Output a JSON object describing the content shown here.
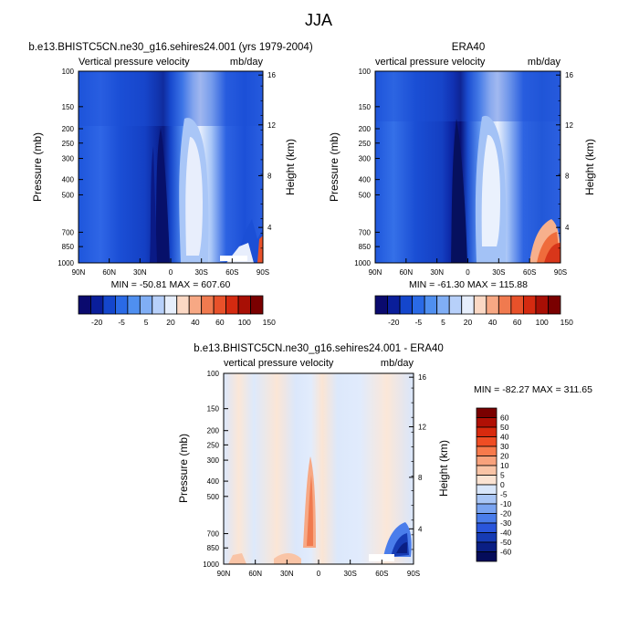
{
  "page": {
    "title": "JJA"
  },
  "chart_data": [
    {
      "type": "heatmap",
      "title": "b.e13.BHISTC5CN.ne30_g16.sehires24.001 (yrs 1979-2004)",
      "left_string": "Vertical pressure velocity",
      "right_string": "mb/day",
      "xlabel": "",
      "ylabel": "Pressure (mb)",
      "y2label": "Height (km)",
      "x_ticks": [
        "90N",
        "60N",
        "30N",
        "0",
        "30S",
        "60S",
        "90S"
      ],
      "y_ticks": [
        "100",
        "150",
        "200",
        "250",
        "300",
        "400",
        "500",
        "700",
        "850",
        "1000"
      ],
      "y2_ticks": [
        "4",
        "8",
        "12",
        "16"
      ],
      "stats": "MIN = -50.81  MAX = 607.60",
      "colorbar_labels": [
        "-20",
        "-5",
        "5",
        "20",
        "40",
        "60",
        "100",
        "150"
      ],
      "colorbar_colors": [
        "#0a0a6e",
        "#0a1e9a",
        "#1446cc",
        "#2a6ae6",
        "#4f8ff0",
        "#80aef5",
        "#b7d0fa",
        "#e6eefc",
        "#fbd8c4",
        "#f7a884",
        "#f07a4f",
        "#e8512a",
        "#d42a10",
        "#a80f05",
        "#7a0000"
      ],
      "grid": false
    },
    {
      "type": "heatmap",
      "title": "ERA40",
      "left_string": "vertical pressure velocity",
      "right_string": "mb/day",
      "xlabel": "",
      "ylabel": "Pressure (mb)",
      "y2label": "Height (km)",
      "x_ticks": [
        "90N",
        "60N",
        "30N",
        "0",
        "30S",
        "60S",
        "90S"
      ],
      "y_ticks": [
        "100",
        "150",
        "200",
        "250",
        "300",
        "400",
        "500",
        "700",
        "850",
        "1000"
      ],
      "y2_ticks": [
        "4",
        "8",
        "12",
        "16"
      ],
      "stats": "MIN = -61.30  MAX = 115.88",
      "colorbar_labels": [
        "-20",
        "-5",
        "5",
        "20",
        "40",
        "60",
        "100",
        "150"
      ],
      "colorbar_colors": [
        "#0a0a6e",
        "#0a1e9a",
        "#1446cc",
        "#2a6ae6",
        "#4f8ff0",
        "#80aef5",
        "#b7d0fa",
        "#e6eefc",
        "#fbd8c4",
        "#f7a884",
        "#f07a4f",
        "#e8512a",
        "#d42a10",
        "#a80f05",
        "#7a0000"
      ],
      "grid": false
    },
    {
      "type": "heatmap",
      "title": "b.e13.BHISTC5CN.ne30_g16.sehires24.001 - ERA40",
      "left_string": "vertical pressure velocity",
      "right_string": "mb/day",
      "xlabel": "",
      "ylabel": "Pressure (mb)",
      "y2label": "Height (km)",
      "x_ticks": [
        "90N",
        "60N",
        "30N",
        "0",
        "30S",
        "60S",
        "90S"
      ],
      "y_ticks": [
        "100",
        "150",
        "200",
        "250",
        "300",
        "400",
        "500",
        "700",
        "850",
        "1000"
      ],
      "y2_ticks": [
        "4",
        "8",
        "12",
        "16"
      ],
      "stats": "MIN = -82.27  MAX = 311.65",
      "colorbar_labels": [
        "60",
        "50",
        "40",
        "30",
        "20",
        "10",
        "5",
        "0",
        "-5",
        "-10",
        "-20",
        "-30",
        "-40",
        "-50",
        "-60"
      ],
      "colorbar_colors": [
        "#7a0000",
        "#b01005",
        "#d82a0e",
        "#ef4d24",
        "#f77a4c",
        "#f8a27c",
        "#f9c4a6",
        "#fbe3d2",
        "#d8e6fa",
        "#a9c6f6",
        "#7aa4f1",
        "#4a7deb",
        "#2a56dc",
        "#163bb4",
        "#0a1f84",
        "#050c5a"
      ],
      "grid": false
    }
  ]
}
